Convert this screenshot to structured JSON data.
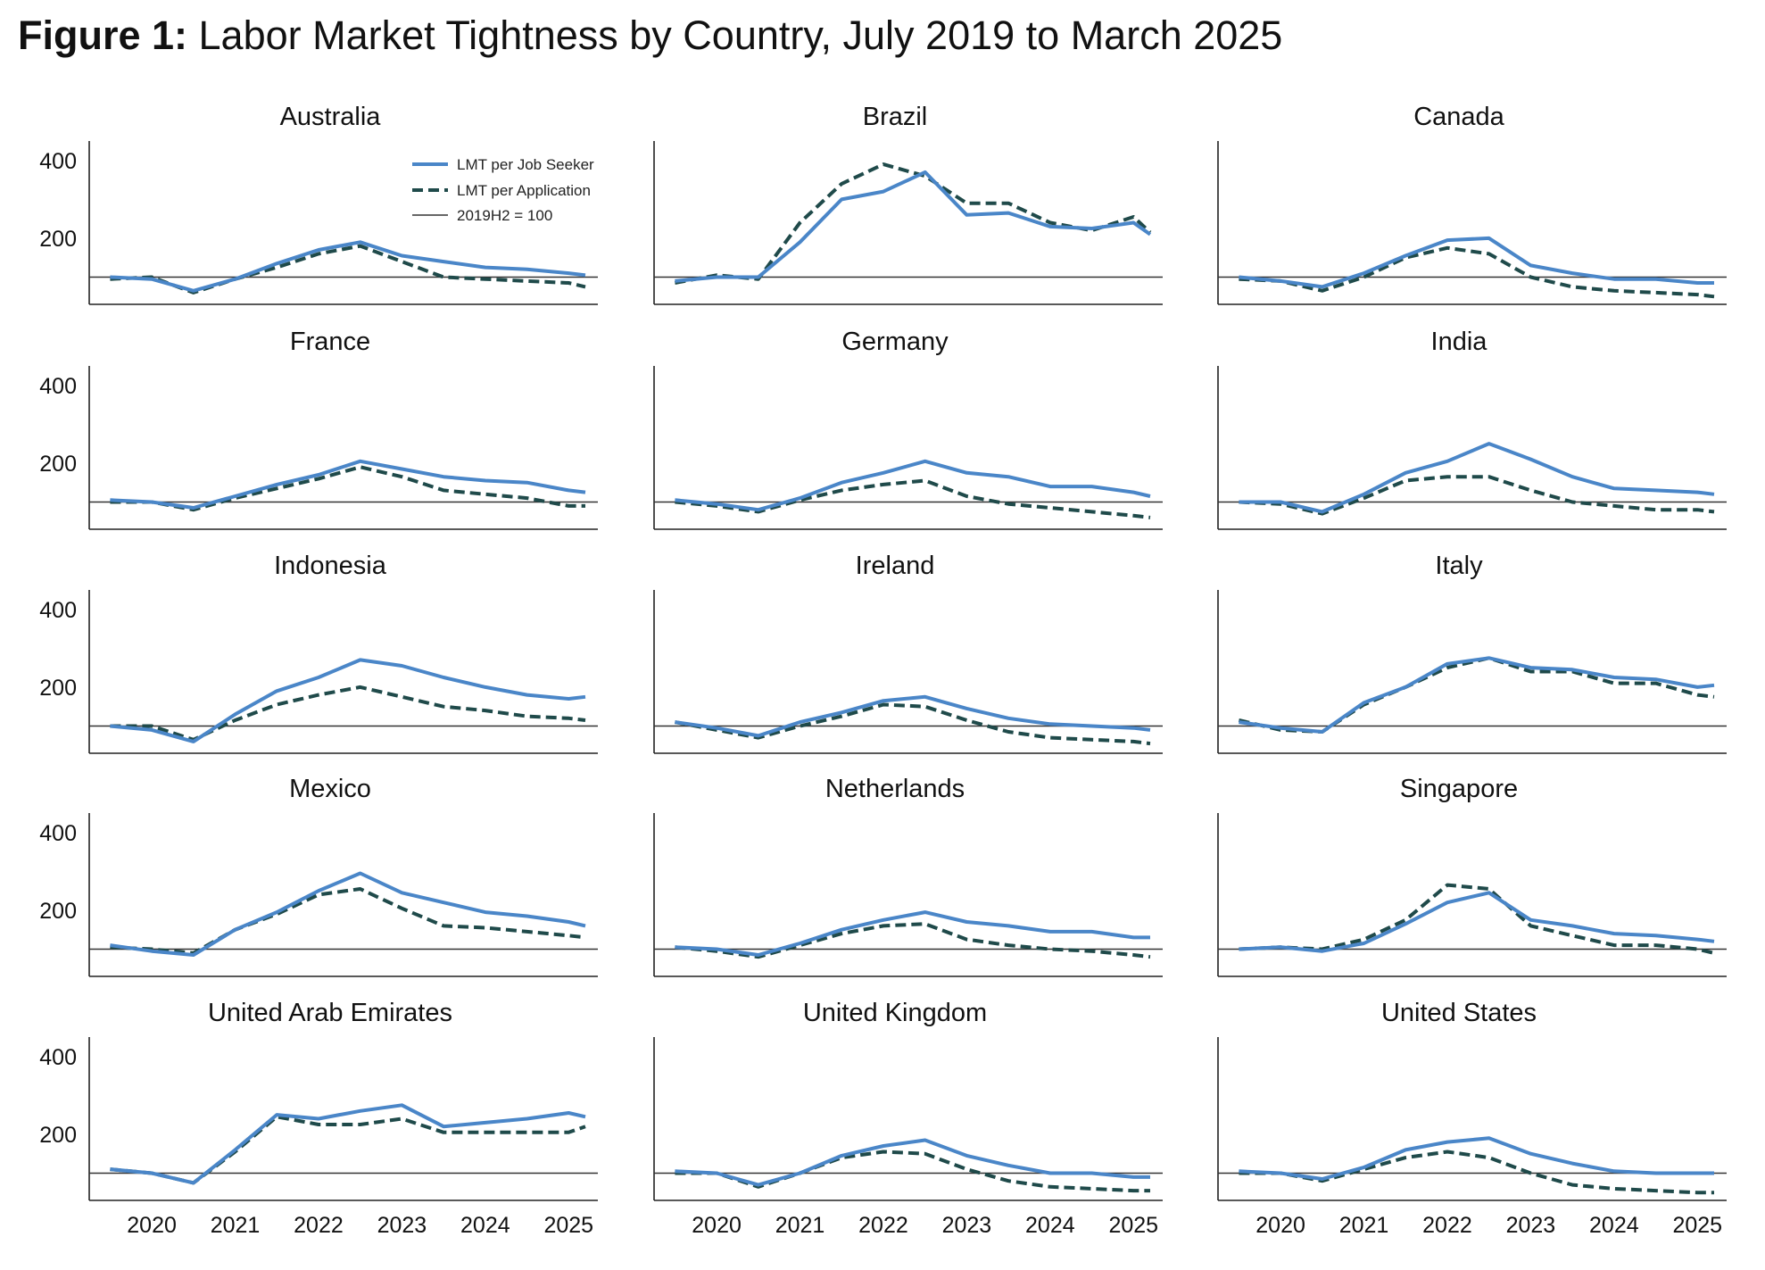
{
  "figure": {
    "title_bold": "Figure 1:",
    "title_rest": " Labor Market Tightness by Country, July 2019 to March 2025"
  },
  "legend": {
    "series1": "LMT per Job Seeker",
    "series2": "LMT per Application",
    "baseline": "2019H2 = 100"
  },
  "colors": {
    "job_seeker": "#4a86c8",
    "application": "#1f4a4a",
    "baseline": "#333333"
  },
  "chart_data": {
    "type": "line",
    "x_range": [
      "2019-07",
      "2025-03"
    ],
    "x_tick_labels": [
      "2020",
      "2021",
      "2022",
      "2023",
      "2024",
      "2025"
    ],
    "y_tick_labels": [
      "200",
      "400"
    ],
    "ylim": [
      30,
      450
    ],
    "baseline": 100,
    "series_names": [
      "LMT per Job Seeker",
      "LMT per Application"
    ],
    "panels": [
      {
        "title": "Australia",
        "x": [
          2019.5,
          2020.0,
          2020.5,
          2021.0,
          2021.5,
          2022.0,
          2022.5,
          2023.0,
          2023.5,
          2024.0,
          2024.5,
          2025.0,
          2025.2
        ],
        "job_seeker": [
          100,
          95,
          65,
          95,
          135,
          170,
          190,
          155,
          140,
          125,
          120,
          110,
          105
        ],
        "application": [
          95,
          100,
          60,
          95,
          125,
          160,
          180,
          140,
          100,
          95,
          90,
          85,
          75
        ]
      },
      {
        "title": "Brazil",
        "x": [
          2019.5,
          2020.0,
          2020.5,
          2021.0,
          2021.5,
          2022.0,
          2022.5,
          2023.0,
          2023.5,
          2024.0,
          2024.5,
          2025.0,
          2025.2
        ],
        "job_seeker": [
          90,
          100,
          100,
          190,
          300,
          320,
          370,
          260,
          265,
          230,
          225,
          240,
          210
        ],
        "application": [
          85,
          105,
          95,
          240,
          340,
          390,
          360,
          290,
          290,
          240,
          220,
          255,
          215
        ]
      },
      {
        "title": "Canada",
        "x": [
          2019.5,
          2020.0,
          2020.5,
          2021.0,
          2021.5,
          2022.0,
          2022.5,
          2023.0,
          2023.5,
          2024.0,
          2024.5,
          2025.0,
          2025.2
        ],
        "job_seeker": [
          100,
          90,
          75,
          110,
          155,
          195,
          200,
          130,
          110,
          95,
          95,
          85,
          85
        ],
        "application": [
          95,
          90,
          65,
          100,
          150,
          175,
          160,
          100,
          75,
          65,
          60,
          55,
          50
        ]
      },
      {
        "title": "France",
        "x": [
          2019.5,
          2020.0,
          2020.5,
          2021.0,
          2021.5,
          2022.0,
          2022.5,
          2023.0,
          2023.5,
          2024.0,
          2024.5,
          2025.0,
          2025.2
        ],
        "job_seeker": [
          105,
          100,
          85,
          115,
          145,
          170,
          205,
          185,
          165,
          155,
          150,
          130,
          125
        ],
        "application": [
          100,
          100,
          80,
          110,
          135,
          160,
          190,
          165,
          130,
          120,
          110,
          90,
          90
        ]
      },
      {
        "title": "Germany",
        "x": [
          2019.5,
          2020.0,
          2020.5,
          2021.0,
          2021.5,
          2022.0,
          2022.5,
          2023.0,
          2023.5,
          2024.0,
          2024.5,
          2025.0,
          2025.2
        ],
        "job_seeker": [
          105,
          95,
          80,
          110,
          150,
          175,
          205,
          175,
          165,
          140,
          140,
          125,
          115
        ],
        "application": [
          100,
          90,
          75,
          105,
          130,
          145,
          155,
          115,
          95,
          85,
          75,
          65,
          60
        ]
      },
      {
        "title": "India",
        "x": [
          2019.5,
          2020.0,
          2020.5,
          2021.0,
          2021.5,
          2022.0,
          2022.5,
          2023.0,
          2023.5,
          2024.0,
          2024.5,
          2025.0,
          2025.2
        ],
        "job_seeker": [
          100,
          100,
          75,
          120,
          175,
          205,
          250,
          210,
          165,
          135,
          130,
          125,
          120
        ],
        "application": [
          100,
          95,
          70,
          110,
          155,
          165,
          165,
          130,
          100,
          90,
          80,
          80,
          75
        ]
      },
      {
        "title": "Indonesia",
        "x": [
          2019.5,
          2020.0,
          2020.5,
          2021.0,
          2021.5,
          2022.0,
          2022.5,
          2023.0,
          2023.5,
          2024.0,
          2024.5,
          2025.0,
          2025.2
        ],
        "job_seeker": [
          100,
          90,
          60,
          130,
          190,
          225,
          270,
          255,
          225,
          200,
          180,
          170,
          175
        ],
        "application": [
          100,
          100,
          65,
          115,
          155,
          180,
          200,
          175,
          150,
          140,
          125,
          120,
          115
        ]
      },
      {
        "title": "Ireland",
        "x": [
          2019.5,
          2020.0,
          2020.5,
          2021.0,
          2021.5,
          2022.0,
          2022.5,
          2023.0,
          2023.5,
          2024.0,
          2024.5,
          2025.0,
          2025.2
        ],
        "job_seeker": [
          110,
          95,
          75,
          110,
          135,
          165,
          175,
          145,
          120,
          105,
          100,
          95,
          90
        ],
        "application": [
          110,
          90,
          70,
          100,
          125,
          155,
          150,
          115,
          85,
          70,
          65,
          60,
          55
        ]
      },
      {
        "title": "Italy",
        "x": [
          2019.5,
          2020.0,
          2020.5,
          2021.0,
          2021.5,
          2022.0,
          2022.5,
          2023.0,
          2023.5,
          2024.0,
          2024.5,
          2025.0,
          2025.2
        ],
        "job_seeker": [
          110,
          95,
          85,
          160,
          200,
          260,
          275,
          250,
          245,
          225,
          220,
          200,
          205
        ],
        "application": [
          115,
          90,
          85,
          155,
          200,
          250,
          275,
          240,
          240,
          210,
          210,
          180,
          175
        ]
      },
      {
        "title": "Mexico",
        "x": [
          2019.5,
          2020.0,
          2020.5,
          2021.0,
          2021.5,
          2022.0,
          2022.5,
          2023.0,
          2023.5,
          2024.0,
          2024.5,
          2025.0,
          2025.2
        ],
        "job_seeker": [
          110,
          95,
          85,
          150,
          195,
          250,
          295,
          245,
          220,
          195,
          185,
          170,
          160
        ],
        "application": [
          105,
          100,
          90,
          150,
          190,
          240,
          255,
          205,
          160,
          155,
          145,
          135,
          130
        ]
      },
      {
        "title": "Netherlands",
        "x": [
          2019.5,
          2020.0,
          2020.5,
          2021.0,
          2021.5,
          2022.0,
          2022.5,
          2023.0,
          2023.5,
          2024.0,
          2024.5,
          2025.0,
          2025.2
        ],
        "job_seeker": [
          105,
          100,
          85,
          115,
          150,
          175,
          195,
          170,
          160,
          145,
          145,
          130,
          130
        ],
        "application": [
          105,
          95,
          80,
          110,
          140,
          160,
          165,
          125,
          110,
          100,
          95,
          85,
          80
        ]
      },
      {
        "title": "Singapore",
        "x": [
          2019.5,
          2020.0,
          2020.5,
          2021.0,
          2021.5,
          2022.0,
          2022.5,
          2023.0,
          2023.5,
          2024.0,
          2024.5,
          2025.0,
          2025.2
        ],
        "job_seeker": [
          100,
          105,
          95,
          115,
          165,
          220,
          245,
          175,
          160,
          140,
          135,
          125,
          120
        ],
        "application": [
          100,
          105,
          100,
          125,
          175,
          265,
          255,
          160,
          135,
          110,
          110,
          100,
          90
        ]
      },
      {
        "title": "United Arab Emirates",
        "x": [
          2019.5,
          2020.0,
          2020.5,
          2021.0,
          2021.5,
          2022.0,
          2022.5,
          2023.0,
          2023.5,
          2024.0,
          2024.5,
          2025.0,
          2025.2
        ],
        "job_seeker": [
          110,
          100,
          75,
          160,
          250,
          240,
          260,
          275,
          220,
          230,
          240,
          255,
          245
        ],
        "application": [
          110,
          100,
          75,
          155,
          245,
          225,
          225,
          240,
          205,
          205,
          205,
          205,
          220
        ]
      },
      {
        "title": "United Kingdom",
        "x": [
          2019.5,
          2020.0,
          2020.5,
          2021.0,
          2021.5,
          2022.0,
          2022.5,
          2023.0,
          2023.5,
          2024.0,
          2024.5,
          2025.0,
          2025.2
        ],
        "job_seeker": [
          105,
          100,
          70,
          100,
          145,
          170,
          185,
          145,
          120,
          100,
          100,
          90,
          90
        ],
        "application": [
          100,
          100,
          65,
          100,
          140,
          155,
          150,
          110,
          80,
          65,
          60,
          55,
          55
        ]
      },
      {
        "title": "United States",
        "x": [
          2019.5,
          2020.0,
          2020.5,
          2021.0,
          2021.5,
          2022.0,
          2022.5,
          2023.0,
          2023.5,
          2024.0,
          2024.5,
          2025.0,
          2025.2
        ],
        "job_seeker": [
          105,
          100,
          85,
          115,
          160,
          180,
          190,
          150,
          125,
          105,
          100,
          100,
          100
        ],
        "application": [
          100,
          100,
          80,
          110,
          140,
          155,
          140,
          100,
          70,
          60,
          55,
          50,
          50
        ]
      }
    ]
  }
}
